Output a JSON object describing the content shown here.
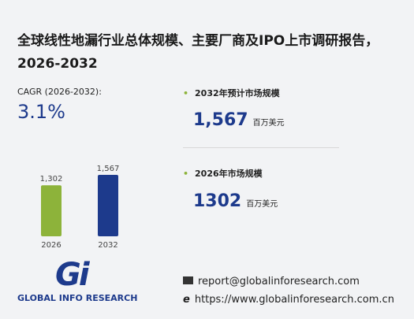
{
  "title": "全球线性地漏行业总体规模、主要厂商及IPO上市调研报告，2026-2032",
  "cagr": {
    "label": "CAGR (2026-2032):",
    "value": "3.1%"
  },
  "chart_data": {
    "type": "bar",
    "categories": [
      "2026",
      "2032"
    ],
    "values": [
      1302,
      1567
    ],
    "value_labels": [
      "1,302",
      "1,567"
    ],
    "colors": [
      "#8db33a",
      "#1d3a8c"
    ]
  },
  "stats": [
    {
      "label": "2032年预计市场规模",
      "value": "1,567",
      "unit": "百万美元"
    },
    {
      "label": "2026年市场规模",
      "value": "1302",
      "unit": "百万美元"
    }
  ],
  "logo": {
    "mark": "Gi",
    "name": "GLOBAL INFO RESEARCH"
  },
  "contacts": [
    "report@globalinforesearch.com",
    "https://www.globalinforesearch.com.cn"
  ]
}
